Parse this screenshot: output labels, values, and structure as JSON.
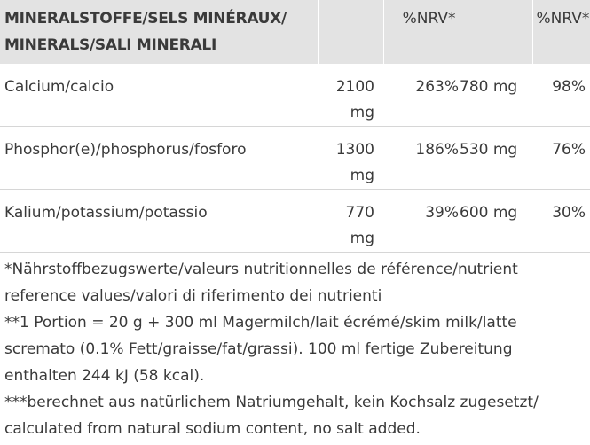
{
  "table": {
    "header": {
      "col0": "MINERALSTOFFE/SELS MINÉRAUX/ MINERALS/SALI MINERALI",
      "col1": "",
      "col2": "%NRV*",
      "col3": "",
      "col4": "%NRV*"
    },
    "rows": [
      {
        "label": "Calcium/calcio",
        "amount1": "2100 mg",
        "nrv1": "263%",
        "amount2": "780 mg",
        "nrv2": "98%"
      },
      {
        "label": "Phosphor(e)/phosphorus/fosforo",
        "amount1": "1300 mg",
        "nrv1": "186%",
        "amount2": "530 mg",
        "nrv2": "76%"
      },
      {
        "label": "Kalium/potassium/potassio",
        "amount1": "770 mg",
        "nrv1": "39%",
        "amount2": "600 mg",
        "nrv2": "30%"
      }
    ]
  },
  "notes": {
    "nrv": "*Nährstoffbezugswerte/valeurs nutritionnelles de référence/nutrient reference values/valori di riferimento dei nutrienti",
    "portion": "**1 Portion = 20 g + 300 ml Magermilch/lait écrémé/skim milk/latte scremato (0.1% Fett/graisse/fat/grassi). 100 ml fertige Zubereitung enthalten 244 kJ (58 kcal).",
    "sodium": "***berechnet aus natürlichem Natriumgehalt, kein Kochsalz zugesetzt/ calculated from natural sodium content, no salt added."
  }
}
